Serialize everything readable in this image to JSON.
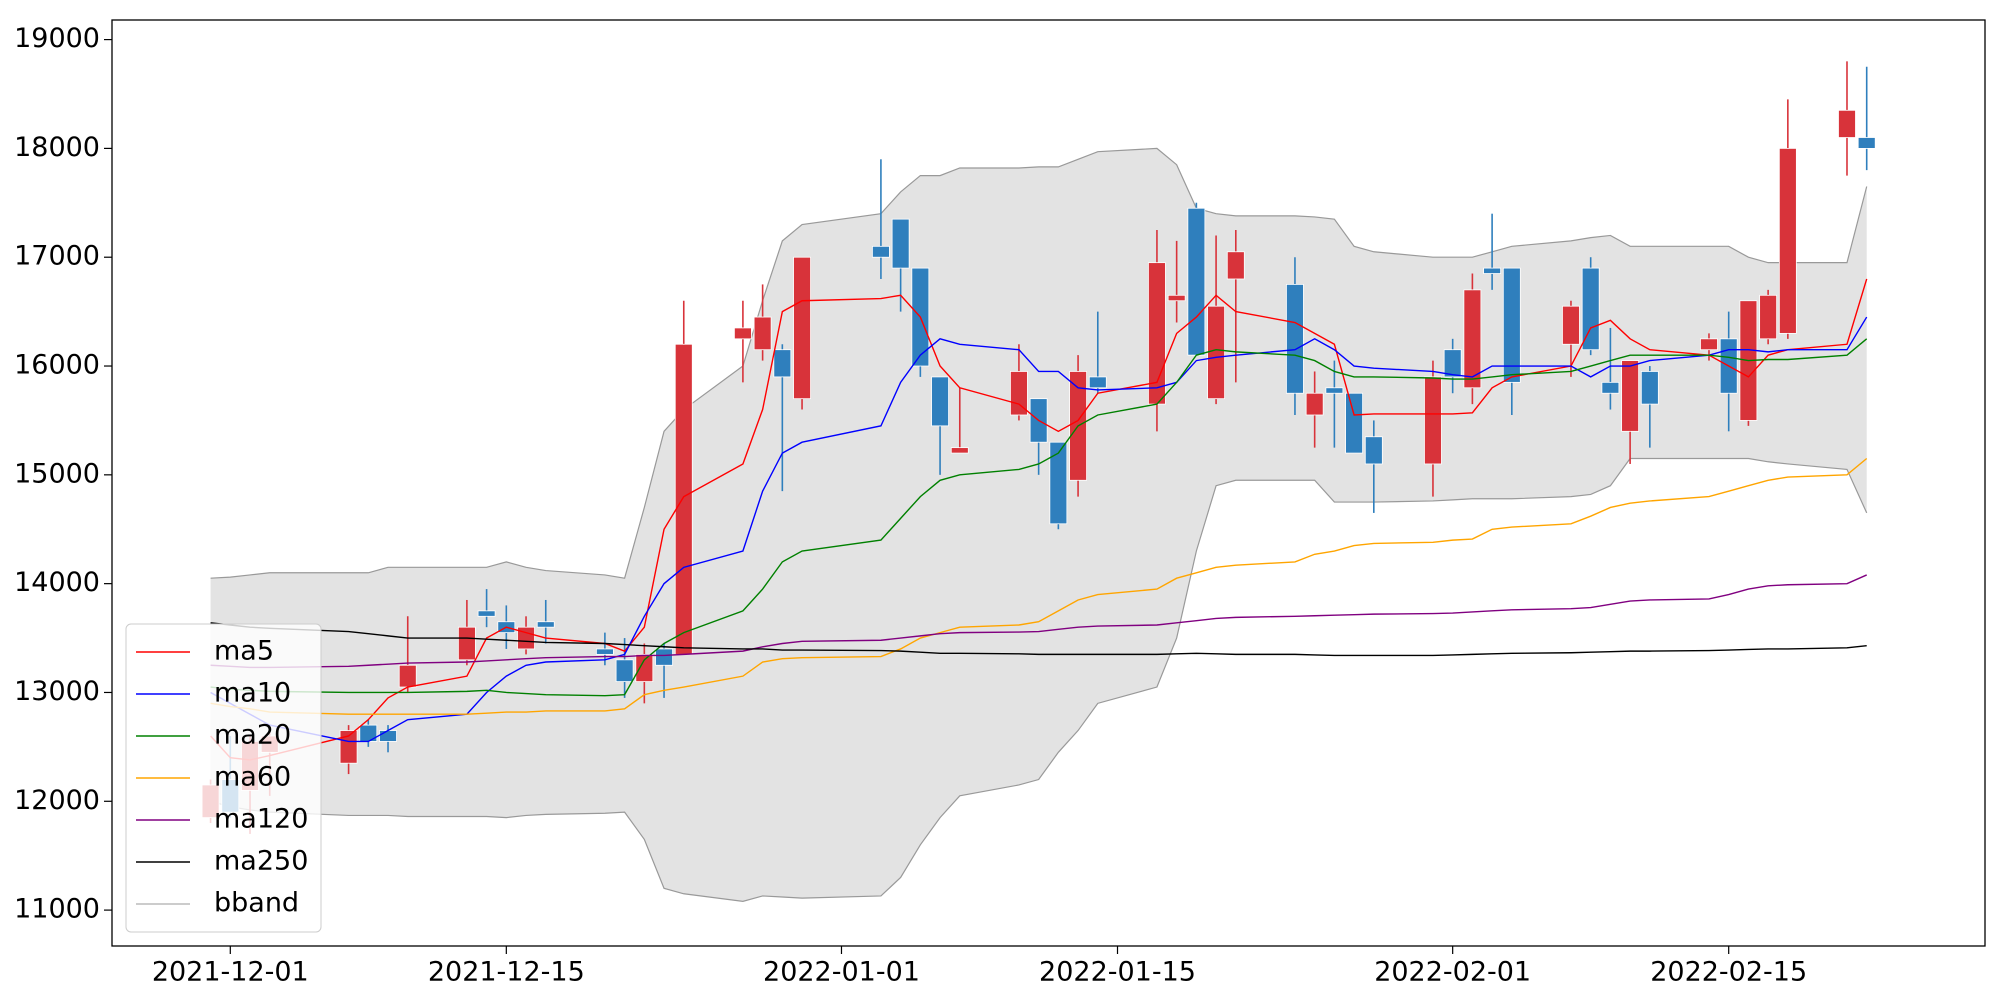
{
  "chart_data": {
    "type": "candlestick",
    "x": [
      "2021-11-30",
      "2021-12-01",
      "2021-12-02",
      "2021-12-03",
      "2021-12-07",
      "2021-12-08",
      "2021-12-09",
      "2021-12-10",
      "2021-12-13",
      "2021-12-14",
      "2021-12-15",
      "2021-12-16",
      "2021-12-17",
      "2021-12-20",
      "2021-12-21",
      "2021-12-22",
      "2021-12-23",
      "2021-12-24",
      "2021-12-27",
      "2021-12-28",
      "2021-12-29",
      "2021-12-30",
      "2022-01-03",
      "2022-01-04",
      "2022-01-05",
      "2022-01-06",
      "2022-01-07",
      "2022-01-10",
      "2022-01-11",
      "2022-01-12",
      "2022-01-13",
      "2022-01-14",
      "2022-01-17",
      "2022-01-18",
      "2022-01-19",
      "2022-01-20",
      "2022-01-21",
      "2022-01-24",
      "2022-01-25",
      "2022-01-26",
      "2022-01-27",
      "2022-01-28",
      "2022-01-31",
      "2022-02-01",
      "2022-02-02",
      "2022-02-03",
      "2022-02-04",
      "2022-02-07",
      "2022-02-08",
      "2022-02-09",
      "2022-02-10",
      "2022-02-11",
      "2022-02-14",
      "2022-02-15",
      "2022-02-16",
      "2022-02-17",
      "2022-02-18",
      "2022-02-21",
      "2022-02-22"
    ],
    "open": [
      11850,
      12200,
      12100,
      12450,
      12350,
      12700,
      12650,
      13050,
      13300,
      13750,
      13650,
      13400,
      13650,
      13400,
      13300,
      13100,
      13400,
      13350,
      16250,
      16150,
      16150,
      15700,
      17100,
      17350,
      16900,
      15900,
      15200,
      15550,
      15700,
      15300,
      14950,
      15900,
      15650,
      16600,
      17450,
      15700,
      16800,
      16750,
      15550,
      15800,
      15750,
      15350,
      15100,
      16150,
      15800,
      16900,
      16900,
      16200,
      16900,
      15850,
      15400,
      15950,
      16150,
      16250,
      15500,
      16250,
      16300,
      18100,
      18100
    ],
    "high": [
      12200,
      12600,
      12600,
      12650,
      12700,
      12750,
      12700,
      13700,
      13850,
      13950,
      13800,
      13700,
      13850,
      13550,
      13500,
      13450,
      13450,
      16600,
      16600,
      16750,
      16200,
      17000,
      17900,
      17350,
      16900,
      15900,
      15800,
      16200,
      15700,
      15300,
      16100,
      16500,
      17250,
      17150,
      17500,
      17200,
      17250,
      17000,
      15950,
      16050,
      15750,
      15500,
      16050,
      16250,
      16850,
      17400,
      16900,
      16600,
      17000,
      16350,
      16050,
      16000,
      16300,
      16500,
      16600,
      16700,
      18450,
      18800,
      18750
    ],
    "low": [
      11800,
      11850,
      11700,
      12050,
      12250,
      12500,
      12450,
      13000,
      13250,
      13600,
      13400,
      13350,
      13450,
      13250,
      12950,
      12900,
      12950,
      13350,
      15850,
      16050,
      14850,
      15600,
      16800,
      16500,
      15900,
      15000,
      15200,
      15500,
      15000,
      14500,
      14800,
      15750,
      15400,
      16400,
      16100,
      15650,
      15850,
      15550,
      15250,
      15250,
      15200,
      14650,
      14800,
      15750,
      15650,
      16700,
      15550,
      15900,
      16100,
      15600,
      15100,
      15250,
      16050,
      15400,
      15450,
      16200,
      16250,
      17750,
      17800
    ],
    "close": [
      12150,
      11900,
      12550,
      12600,
      12650,
      12550,
      12550,
      13250,
      13600,
      13700,
      13550,
      13600,
      13600,
      13350,
      13100,
      13350,
      13250,
      16200,
      16350,
      16450,
      15900,
      17000,
      17000,
      16900,
      16000,
      15450,
      15250,
      15950,
      15300,
      14550,
      15950,
      15800,
      16950,
      16650,
      16100,
      16550,
      17050,
      15750,
      15750,
      15750,
      15200,
      15100,
      15900,
      15900,
      16700,
      16850,
      15850,
      16550,
      16150,
      15750,
      16050,
      15650,
      16250,
      15750,
      16600,
      16650,
      18000,
      18350,
      18000
    ],
    "up_color": "#d8333a",
    "down_color": "#2f7fbd",
    "lines": [
      {
        "name": "ma5",
        "color": "#ff0000",
        "values": [
          12600,
          12400,
          12380,
          12420,
          12600,
          12750,
          12950,
          13050,
          13150,
          13500,
          13600,
          13550,
          13500,
          13450,
          13380,
          13600,
          14500,
          14800,
          15100,
          15600,
          16500,
          16600,
          16620,
          16650,
          16450,
          16000,
          15800,
          15650,
          15500,
          15400,
          15500,
          15750,
          15850,
          16300,
          16450,
          16650,
          16500,
          16400,
          16300,
          16200,
          15550,
          15560,
          15560,
          15560,
          15570,
          15800,
          15900,
          16000,
          16350,
          16420,
          16250,
          16150,
          16100,
          16000,
          15900,
          16100,
          16150,
          16200,
          16800
        ]
      },
      {
        "name": "ma10",
        "color": "#0000ff",
        "values": [
          13000,
          12900,
          12800,
          12700,
          12550,
          12550,
          12650,
          12750,
          12800,
          13000,
          13150,
          13250,
          13280,
          13300,
          13350,
          13700,
          14000,
          14150,
          14300,
          14850,
          15200,
          15300,
          15450,
          15850,
          16100,
          16250,
          16200,
          16150,
          15950,
          15950,
          15800,
          15780,
          15800,
          15850,
          16050,
          16080,
          16100,
          16150,
          16250,
          16150,
          16000,
          15980,
          15950,
          15920,
          15900,
          16000,
          16000,
          16000,
          15900,
          16000,
          16000,
          16050,
          16100,
          16150,
          16150,
          16130,
          16150,
          16150,
          16450
        ]
      },
      {
        "name": "ma20",
        "color": "#008000",
        "values": [
          13050,
          13030,
          13020,
          13010,
          13000,
          13000,
          13000,
          13000,
          13010,
          13020,
          13000,
          12990,
          12980,
          12970,
          12980,
          13300,
          13450,
          13550,
          13750,
          13950,
          14200,
          14300,
          14400,
          14600,
          14800,
          14950,
          15000,
          15050,
          15100,
          15200,
          15450,
          15550,
          15650,
          15850,
          16100,
          16150,
          16130,
          16100,
          16050,
          15950,
          15900,
          15900,
          15890,
          15880,
          15880,
          15900,
          15920,
          15950,
          16000,
          16050,
          16100,
          16100,
          16100,
          16080,
          16050,
          16060,
          16060,
          16100,
          16250
        ]
      },
      {
        "name": "ma60",
        "color": "#ffa500",
        "values": [
          12900,
          12870,
          12850,
          12820,
          12800,
          12800,
          12800,
          12800,
          12800,
          12810,
          12820,
          12820,
          12830,
          12830,
          12850,
          12980,
          13020,
          13050,
          13150,
          13280,
          13310,
          13320,
          13330,
          13400,
          13500,
          13550,
          13600,
          13620,
          13650,
          13750,
          13850,
          13900,
          13950,
          14050,
          14100,
          14150,
          14170,
          14200,
          14270,
          14300,
          14350,
          14370,
          14380,
          14400,
          14410,
          14500,
          14520,
          14550,
          14620,
          14700,
          14740,
          14760,
          14800,
          14850,
          14900,
          14950,
          14980,
          15000,
          15150
        ]
      },
      {
        "name": "ma120",
        "color": "#800080",
        "values": [
          13250,
          13240,
          13230,
          13230,
          13240,
          13250,
          13260,
          13270,
          13280,
          13290,
          13300,
          13310,
          13320,
          13330,
          13330,
          13340,
          13340,
          13350,
          13380,
          13420,
          13450,
          13470,
          13480,
          13500,
          13520,
          13540,
          13550,
          13555,
          13560,
          13580,
          13600,
          13610,
          13620,
          13640,
          13660,
          13680,
          13690,
          13700,
          13705,
          13710,
          13715,
          13720,
          13725,
          13730,
          13740,
          13750,
          13760,
          13770,
          13780,
          13810,
          13840,
          13850,
          13860,
          13900,
          13950,
          13980,
          13990,
          14000,
          14080
        ]
      },
      {
        "name": "ma250",
        "color": "#000000",
        "values": [
          13640,
          13620,
          13600,
          13590,
          13560,
          13540,
          13520,
          13500,
          13500,
          13490,
          13480,
          13470,
          13460,
          13450,
          13440,
          13430,
          13420,
          13410,
          13400,
          13400,
          13390,
          13390,
          13385,
          13380,
          13370,
          13360,
          13360,
          13355,
          13350,
          13350,
          13350,
          13350,
          13350,
          13355,
          13360,
          13355,
          13350,
          13350,
          13345,
          13340,
          13340,
          13340,
          13340,
          13345,
          13350,
          13355,
          13360,
          13365,
          13370,
          13375,
          13380,
          13380,
          13385,
          13390,
          13395,
          13400,
          13400,
          13410,
          13430
        ]
      }
    ],
    "band": {
      "name": "bband",
      "color": "#999999",
      "fill": "#e3e3e3",
      "upper": [
        14050,
        14060,
        14080,
        14100,
        14100,
        14100,
        14150,
        14150,
        14150,
        14150,
        14200,
        14150,
        14120,
        14080,
        14050,
        14700,
        15400,
        15600,
        16000,
        16600,
        17150,
        17300,
        17400,
        17600,
        17750,
        17750,
        17820,
        17820,
        17830,
        17830,
        17900,
        17970,
        18000,
        17850,
        17450,
        17400,
        17380,
        17380,
        17370,
        17350,
        17100,
        17050,
        17000,
        17000,
        17000,
        17050,
        17100,
        17150,
        17180,
        17200,
        17100,
        17100,
        17100,
        17100,
        17000,
        16950,
        16950,
        16950,
        17650
      ],
      "lower": [
        12000,
        11950,
        11920,
        11900,
        11870,
        11870,
        11870,
        11860,
        11860,
        11860,
        11850,
        11870,
        11880,
        11890,
        11900,
        11650,
        11200,
        11150,
        11080,
        11130,
        11120,
        11110,
        11130,
        11300,
        11600,
        11850,
        12050,
        12150,
        12200,
        12450,
        12650,
        12900,
        13050,
        13500,
        14300,
        14900,
        14950,
        14950,
        14950,
        14750,
        14750,
        14750,
        14760,
        14770,
        14780,
        14780,
        14780,
        14800,
        14820,
        14900,
        15150,
        15150,
        15150,
        15150,
        15150,
        15120,
        15100,
        15050,
        14650
      ]
    },
    "xlim": [
      "2021-11-25",
      "2022-02-28"
    ],
    "xticks": [
      "2021-12-01",
      "2021-12-15",
      "2022-01-01",
      "2022-01-15",
      "2022-02-01",
      "2022-02-15"
    ],
    "ylim": [
      10670,
      19180
    ],
    "yticks": [
      11000,
      12000,
      13000,
      14000,
      15000,
      16000,
      17000,
      18000,
      19000
    ],
    "legend": "lower left"
  }
}
